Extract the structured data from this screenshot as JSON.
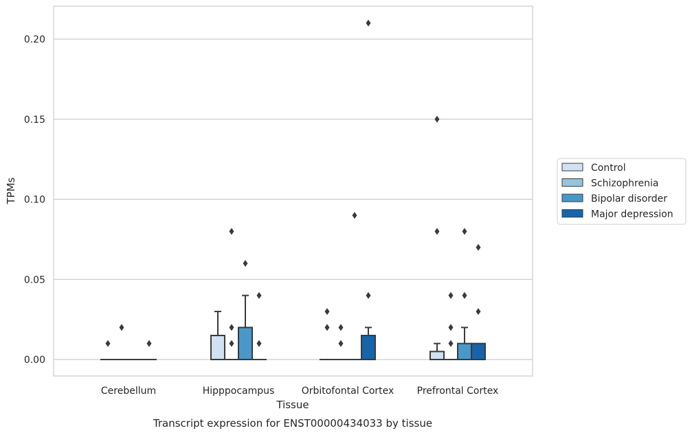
{
  "chart_data": {
    "type": "box",
    "title": "",
    "caption": "Transcript expression for ENST00000434033 by tissue",
    "xlabel": "Tissue",
    "ylabel": "TPMs",
    "ylim": [
      -0.01,
      0.22
    ],
    "yticks": [
      "0.00",
      "0.05",
      "0.10",
      "0.15",
      "0.20"
    ],
    "grid": "horizontal",
    "legend_position": "right",
    "categories": [
      "Cerebellum",
      "Hipppocampus",
      "Orbitofontal Cortex",
      "Prefrontal Cortex"
    ],
    "series": [
      {
        "name": "Control",
        "color": "#d0e1f2",
        "boxes": [
          {
            "q1": 0,
            "median": 0,
            "q3": 0,
            "whisker_low": 0,
            "whisker_high": 0,
            "outliers": [
              0.01
            ]
          },
          {
            "q1": 0,
            "median": 0,
            "q3": 0.015,
            "whisker_low": 0,
            "whisker_high": 0.03,
            "outliers": []
          },
          {
            "q1": 0,
            "median": 0,
            "q3": 0,
            "whisker_low": 0,
            "whisker_high": 0,
            "outliers": [
              0.02,
              0.03
            ]
          },
          {
            "q1": 0,
            "median": 0,
            "q3": 0.005,
            "whisker_low": 0,
            "whisker_high": 0.01,
            "outliers": [
              0.08,
              0.15
            ]
          }
        ]
      },
      {
        "name": "Schizophrenia",
        "color": "#94c4df",
        "boxes": [
          {
            "q1": 0,
            "median": 0,
            "q3": 0,
            "whisker_low": 0,
            "whisker_high": 0,
            "outliers": [
              0.02
            ]
          },
          {
            "q1": 0,
            "median": 0,
            "q3": 0,
            "whisker_low": 0,
            "whisker_high": 0,
            "outliers": [
              0.01,
              0.02,
              0.08
            ]
          },
          {
            "q1": 0,
            "median": 0,
            "q3": 0,
            "whisker_low": 0,
            "whisker_high": 0,
            "outliers": [
              0.01,
              0.02
            ]
          },
          {
            "q1": 0,
            "median": 0,
            "q3": 0,
            "whisker_low": 0,
            "whisker_high": 0,
            "outliers": [
              0.01,
              0.02,
              0.04
            ]
          }
        ]
      },
      {
        "name": "Bipolar disorder",
        "color": "#4a98c9",
        "boxes": [
          {
            "q1": 0,
            "median": 0,
            "q3": 0,
            "whisker_low": 0,
            "whisker_high": 0,
            "outliers": []
          },
          {
            "q1": 0,
            "median": 0,
            "q3": 0.02,
            "whisker_low": 0,
            "whisker_high": 0.04,
            "outliers": [
              0.06
            ]
          },
          {
            "q1": 0,
            "median": 0,
            "q3": 0,
            "whisker_low": 0,
            "whisker_high": 0,
            "outliers": [
              0.09
            ]
          },
          {
            "q1": 0,
            "median": 0,
            "q3": 0.01,
            "whisker_low": 0,
            "whisker_high": 0.02,
            "outliers": [
              0.04,
              0.08
            ]
          }
        ]
      },
      {
        "name": "Major depression",
        "color": "#1764ab",
        "boxes": [
          {
            "q1": 0,
            "median": 0,
            "q3": 0,
            "whisker_low": 0,
            "whisker_high": 0,
            "outliers": [
              0.01
            ]
          },
          {
            "q1": 0,
            "median": 0,
            "q3": 0,
            "whisker_low": 0,
            "whisker_high": 0,
            "outliers": [
              0.01,
              0.04
            ]
          },
          {
            "q1": 0,
            "median": 0,
            "q3": 0.015,
            "whisker_low": 0,
            "whisker_high": 0.02,
            "outliers": [
              0.04,
              0.21
            ]
          },
          {
            "q1": 0,
            "median": 0,
            "q3": 0.01,
            "whisker_low": 0,
            "whisker_high": 0.01,
            "outliers": [
              0.03,
              0.07
            ]
          }
        ]
      }
    ]
  }
}
